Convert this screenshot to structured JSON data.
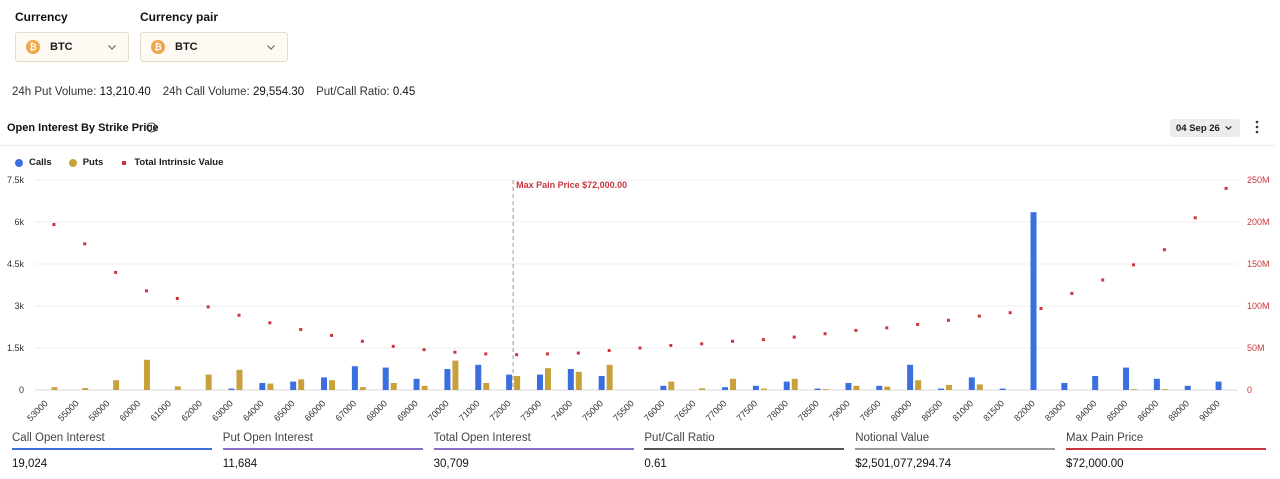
{
  "filters": {
    "currency": {
      "label": "Currency",
      "value": "BTC",
      "coin_glyph": "₿"
    },
    "currency_pair": {
      "label": "Currency pair",
      "value": "BTC",
      "coin_glyph": "₿"
    }
  },
  "stats": [
    {
      "label": "24h Put Volume:",
      "value": "13,210.40"
    },
    {
      "label": "24h Call Volume:",
      "value": "29,554.30"
    },
    {
      "label": "Put/Call Ratio:",
      "value": "0.45"
    }
  ],
  "section": {
    "title": "Open Interest By Strike Price",
    "expiry": "04 Sep 26",
    "icons": {
      "info": "info-icon",
      "menu": "more-vertical-icon",
      "dropdown": "chevron-down-icon"
    }
  },
  "colors": {
    "calls": "#3b6fe0",
    "puts": "#c9a13c",
    "intrinsic": "#c9363e",
    "grid": "#efefef"
  },
  "chart_data": {
    "type": "bar",
    "legend": [
      "Calls",
      "Puts",
      "Total Intrinsic Value"
    ],
    "legend_position": "top-left",
    "categories": [
      "53000",
      "55000",
      "58000",
      "60000",
      "61000",
      "62000",
      "63000",
      "64000",
      "65000",
      "66000",
      "67000",
      "68000",
      "69000",
      "70000",
      "71000",
      "72000",
      "73000",
      "74000",
      "75000",
      "75500",
      "76000",
      "76500",
      "77000",
      "77500",
      "78000",
      "78500",
      "79000",
      "79500",
      "80000",
      "80500",
      "81000",
      "81500",
      "82000",
      "83000",
      "84000",
      "85000",
      "86000",
      "88000",
      "90000"
    ],
    "series": [
      {
        "name": "Calls",
        "axis": "left",
        "values": [
          0,
          0,
          0,
          0,
          0,
          0,
          50,
          250,
          300,
          450,
          850,
          800,
          400,
          750,
          900,
          550,
          550,
          750,
          500,
          0,
          150,
          0,
          100,
          150,
          300,
          50,
          250,
          150,
          900,
          50,
          450,
          50,
          6350,
          250,
          500,
          800,
          400,
          150,
          300
        ]
      },
      {
        "name": "Puts",
        "axis": "left",
        "values": [
          100,
          70,
          350,
          1080,
          130,
          550,
          720,
          230,
          380,
          350,
          100,
          250,
          150,
          1050,
          250,
          500,
          780,
          650,
          900,
          0,
          300,
          60,
          400,
          50,
          400,
          30,
          150,
          120,
          350,
          180,
          200,
          0,
          0,
          0,
          0,
          30,
          30,
          0,
          0
        ]
      },
      {
        "name": "Total Intrinsic Value",
        "axis": "right",
        "values": [
          197,
          174,
          140,
          118,
          109,
          99,
          89,
          80,
          72,
          65,
          58,
          52,
          48,
          45,
          43,
          42,
          43,
          44,
          47,
          50,
          53,
          55,
          58,
          60,
          63,
          67,
          71,
          74,
          78,
          83,
          88,
          92,
          97,
          115,
          131,
          149,
          167,
          205,
          240
        ]
      }
    ],
    "y_left": {
      "ticks": [
        "0",
        "1.5k",
        "3k",
        "4.5k",
        "6k",
        "7.5k"
      ],
      "range": [
        0,
        7500
      ]
    },
    "y_right": {
      "ticks": [
        "0",
        "50M",
        "100M",
        "150M",
        "200M",
        "250M"
      ],
      "range": [
        0,
        250
      ]
    },
    "grid": true,
    "annotation": {
      "text": "Max Pain Price $72,000.00",
      "category": "72000"
    }
  },
  "summary": [
    {
      "label": "Call Open Interest",
      "value": "19,024",
      "color": "#3b6fe0"
    },
    {
      "label": "Put Open Interest",
      "value": "11,684",
      "color": "#8a6fc9"
    },
    {
      "label": "Total Open Interest",
      "value": "30,709",
      "color": "#8a6fc9"
    },
    {
      "label": "Put/Call Ratio",
      "value": "0.61",
      "color": "#555555"
    },
    {
      "label": "Notional Value",
      "value": "$2,501,077,294.74",
      "color": "#999999"
    },
    {
      "label": "Max Pain Price",
      "value": "$72,000.00",
      "color": "#c9363e"
    }
  ]
}
